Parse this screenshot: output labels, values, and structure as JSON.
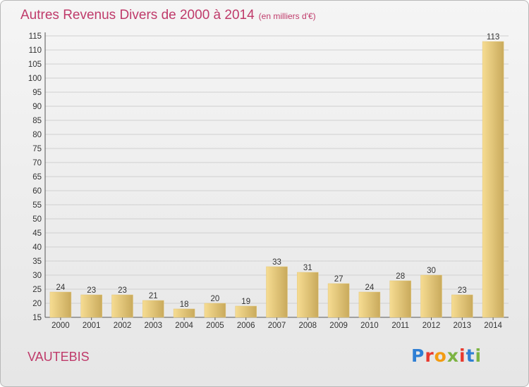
{
  "header": {
    "title": "Autres Revenus Divers de 2000 à 2014",
    "unit": "(en milliers d'€)"
  },
  "footer": {
    "place": "VAUTEBIS",
    "logo_letters": [
      "P",
      "r",
      "o",
      "x",
      "i",
      "t",
      "i"
    ],
    "logo_colors": [
      "#2f7fd4",
      "#e8392e",
      "#f39c12",
      "#7cb342",
      "#e8392e",
      "#2f7fd4",
      "#7cb342"
    ]
  },
  "colors": {
    "title": "#bf3a6a",
    "bar_light": "#f6dc92",
    "bar_dark": "#c9aa5c",
    "grid": "#d0d0d0"
  },
  "chart_data": {
    "type": "bar",
    "title": "Autres Revenus Divers de 2000 à 2014",
    "subtitle": "(en milliers d'€)",
    "categories": [
      "2000",
      "2001",
      "2002",
      "2003",
      "2004",
      "2005",
      "2006",
      "2007",
      "2008",
      "2009",
      "2010",
      "2011",
      "2012",
      "2013",
      "2014"
    ],
    "values": [
      24,
      23,
      23,
      21,
      18,
      20,
      19,
      33,
      31,
      27,
      24,
      28,
      30,
      23,
      113
    ],
    "ylim": [
      15,
      115
    ],
    "yticks": [
      15,
      20,
      25,
      30,
      35,
      40,
      45,
      50,
      55,
      60,
      65,
      70,
      75,
      80,
      85,
      90,
      95,
      100,
      105,
      110,
      115
    ],
    "grid": "horizontal",
    "xlabel": "",
    "ylabel": ""
  }
}
